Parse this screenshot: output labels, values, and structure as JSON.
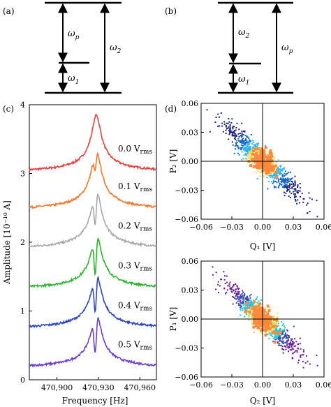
{
  "panels": {
    "a": {
      "label": "(a)",
      "omega_p": "ω",
      "omega_p_sub": "p",
      "omega_2": "ω",
      "omega_2_sub": "2",
      "omega_1": "ω",
      "omega_1_sub": "1"
    },
    "b": {
      "label": "(b)",
      "omega_2": "ω",
      "omega_2_sub": "2",
      "omega_p": "ω",
      "omega_p_sub": "p",
      "omega_1": "ω",
      "omega_1_sub": "1"
    },
    "c": {
      "label": "(c)"
    },
    "d": {
      "label": "(d)"
    }
  },
  "chart_data": [
    {
      "type": "line",
      "panel": "(c)",
      "xlabel": "Frequency [Hz]",
      "ylabel": "Amplitude [10⁻¹⁰ A]",
      "xlim": [
        470880,
        470972
      ],
      "ylim": [
        0,
        4
      ],
      "x_ticks": [
        "470,900",
        "470,930",
        "470,960"
      ],
      "y_ticks": [
        "0",
        "1",
        "2",
        "3",
        "4"
      ],
      "series": [
        {
          "name": "0.0 V",
          "name_sub": "rms",
          "color": "#e8403a",
          "offset": 3.0,
          "peak": 0.85,
          "dip_depth": 0.0,
          "dip_width": 1.2
        },
        {
          "name": "0.1 V",
          "name_sub": "rms",
          "color": "#f07b30",
          "offset": 2.45,
          "peak": 0.9,
          "dip_depth": 0.28,
          "dip_width": 1.2
        },
        {
          "name": "0.2 V",
          "name_sub": "rms",
          "color": "#a8a8a8",
          "offset": 1.88,
          "peak": 0.9,
          "dip_depth": 0.5,
          "dip_width": 1.2
        },
        {
          "name": "0.3 V",
          "name_sub": "rms",
          "color": "#2cb52c",
          "offset": 1.3,
          "peak": 0.85,
          "dip_depth": 0.6,
          "dip_width": 1.2
        },
        {
          "name": "0.4 V",
          "name_sub": "rms",
          "color": "#2b45c2",
          "offset": 0.72,
          "peak": 0.85,
          "dip_depth": 0.55,
          "dip_width": 1.2
        },
        {
          "name": "0.5 V",
          "name_sub": "rms",
          "color": "#6a3fcf",
          "offset": 0.15,
          "peak": 0.85,
          "dip_depth": 0.58,
          "dip_width": 1.3
        }
      ],
      "resonance_hz": 470928.5
    },
    {
      "type": "scatter",
      "panel": "(d) top",
      "xlabel": "Q₁ [V]",
      "ylabel": "P₂ [V]",
      "xlim": [
        -0.06,
        0.06
      ],
      "ylim": [
        -0.06,
        0.06
      ],
      "x_ticks": [
        "−0.06",
        "−0.03",
        "0.00",
        "0.03",
        "0.06"
      ],
      "y_ticks": [
        "0.06",
        "0.03",
        "0.00",
        "−0.03",
        "−0.06"
      ],
      "colors": [
        "#1a237e",
        "#1565c0",
        "#29b6f6",
        "#ffd54f",
        "#ff8a3d"
      ],
      "slope": -1.0
    },
    {
      "type": "scatter",
      "panel": "(d) bottom",
      "xlabel": "Q₂ [V]",
      "ylabel": "P₁ [V]",
      "xlim": [
        -0.06,
        0.06
      ],
      "ylim": [
        -0.06,
        0.06
      ],
      "x_ticks": [
        "−0.06",
        "−0.03",
        "0.00",
        "0.03",
        "0.06"
      ],
      "y_ticks": [
        "0.06",
        "0.03",
        "0.00",
        "−0.03",
        "−0.06"
      ],
      "colors": [
        "#6a1b9a",
        "#3949ab",
        "#26c6da",
        "#d4e157",
        "#ff8a3d"
      ],
      "slope": -1.0
    }
  ]
}
